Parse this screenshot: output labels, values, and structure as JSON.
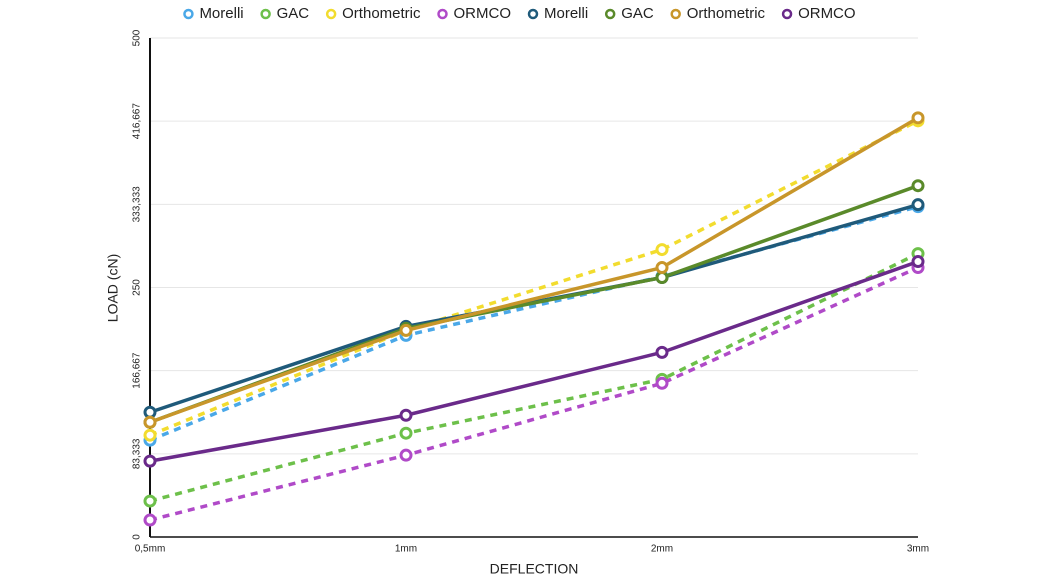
{
  "chart_data": {
    "type": "line",
    "categories": [
      "0,5mm",
      "1mm",
      "2mm",
      "3mm"
    ],
    "x_label": "DEFLECTION",
    "y_label": "LOAD  (cN)",
    "ylim": [
      0,
      500
    ],
    "yticks": [
      0,
      {
        "value": 83.333,
        "label": "83,333"
      },
      {
        "value": 166.667,
        "label": "166,667"
      },
      250,
      {
        "value": 333.333,
        "label": "333,333"
      },
      {
        "value": 416.667,
        "label": "416,667"
      },
      500
    ],
    "grid": true,
    "legend": "top",
    "series": [
      {
        "name": "Morelli",
        "color": "#4aa8e8",
        "dashed": true,
        "values": [
          97,
          202,
          261,
          331
        ]
      },
      {
        "name": "GAC",
        "color": "#6dc04a",
        "dashed": true,
        "values": [
          36,
          104,
          158,
          284
        ]
      },
      {
        "name": "Orthometric",
        "color": "#f2dc2e",
        "dashed": true,
        "values": [
          102,
          207,
          288,
          417
        ]
      },
      {
        "name": "ORMCO",
        "color": "#b04ac8",
        "dashed": true,
        "values": [
          17,
          82,
          154,
          270
        ]
      },
      {
        "name": "Morelli",
        "color": "#1f5a7a",
        "dashed": false,
        "values": [
          125,
          211,
          260,
          333
        ]
      },
      {
        "name": "GAC",
        "color": "#5a8a2a",
        "dashed": false,
        "values": [
          115,
          209,
          260,
          352
        ]
      },
      {
        "name": "Orthometric",
        "color": "#c8962a",
        "dashed": false,
        "values": [
          115,
          207,
          270,
          420
        ]
      },
      {
        "name": "ORMCO",
        "color": "#6a2a8a",
        "dashed": false,
        "values": [
          76,
          122,
          185,
          276
        ]
      }
    ]
  }
}
